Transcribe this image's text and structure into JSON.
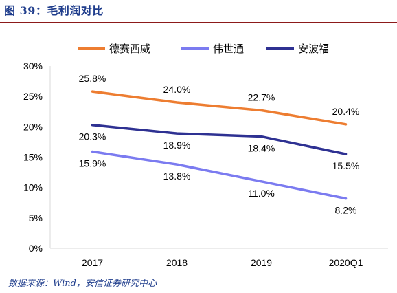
{
  "figure_title": "图 39：毛利润对比",
  "source_note": "数据来源：Wind，安信证券研究中心",
  "chart_data": {
    "type": "line",
    "categories": [
      "2017",
      "2018",
      "2019",
      "2020Q1"
    ],
    "ylim": [
      0,
      30
    ],
    "y_ticks": [
      "0%",
      "5%",
      "10%",
      "15%",
      "20%",
      "25%",
      "30%"
    ],
    "grid": false,
    "legend_position": "top",
    "series": [
      {
        "name": "德赛西威",
        "values": [
          25.8,
          24.0,
          22.7,
          20.4
        ],
        "labels": [
          "25.8%",
          "24.0%",
          "22.7%",
          "20.4%"
        ],
        "color": "#ed7d31"
      },
      {
        "name": "伟世通",
        "values": [
          15.9,
          13.8,
          11.0,
          8.2
        ],
        "labels": [
          "15.9%",
          "13.8%",
          "11.0%",
          "8.2%"
        ],
        "color": "#7b7bf0"
      },
      {
        "name": "安波福",
        "values": [
          20.3,
          18.9,
          18.4,
          15.5
        ],
        "labels": [
          "20.3%",
          "18.9%",
          "18.4%",
          "15.5%"
        ],
        "color": "#2e3192"
      }
    ]
  }
}
